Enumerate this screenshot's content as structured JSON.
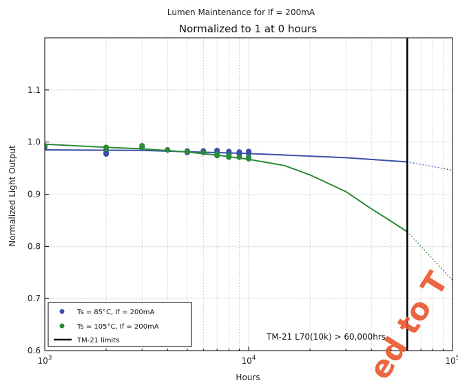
{
  "chart_data": {
    "type": "scatter",
    "title": "Lumen Maintenance for If = 200mA",
    "subtitle": "Normalized to 1 at 0 hours",
    "xlabel": "Hours",
    "ylabel": "Normalized Light Output",
    "xscale": "log",
    "xlim": [
      1000,
      100000
    ],
    "ylim": [
      0.6,
      1.2
    ],
    "x_ticks": [
      {
        "value": 1000,
        "base": "10",
        "exp": "3"
      },
      {
        "value": 10000,
        "base": "10",
        "exp": "4"
      },
      {
        "value": 100000,
        "base": "10",
        "exp": "5"
      }
    ],
    "y_ticks": [
      {
        "value": 0.6,
        "label": "0.6"
      },
      {
        "value": 0.7,
        "label": "0.7"
      },
      {
        "value": 0.8,
        "label": "0.8"
      },
      {
        "value": 0.9,
        "label": "0.9"
      },
      {
        "value": 1.0,
        "label": "1.0"
      },
      {
        "value": 1.1,
        "label": "1.1"
      }
    ],
    "grid": true,
    "legend_position": "lower-left",
    "series": [
      {
        "name": "Ts = 85°C, If = 200mA",
        "color": "#3a4fa8",
        "points": [
          [
            1000,
            0.99
          ],
          [
            2000,
            0.98
          ],
          [
            2000,
            0.977
          ],
          [
            3000,
            0.99
          ],
          [
            4000,
            0.985
          ],
          [
            5000,
            0.983
          ],
          [
            5000,
            0.98
          ],
          [
            6000,
            0.983
          ],
          [
            7000,
            0.984
          ],
          [
            7000,
            0.98
          ],
          [
            8000,
            0.982
          ],
          [
            8000,
            0.978
          ],
          [
            9000,
            0.981
          ],
          [
            9000,
            0.977
          ],
          [
            10000,
            0.982
          ],
          [
            10000,
            0.978
          ]
        ],
        "fit": [
          [
            1000,
            0.985
          ],
          [
            3000,
            0.984
          ],
          [
            10000,
            0.978
          ],
          [
            30000,
            0.97
          ],
          [
            60000,
            0.962
          ]
        ],
        "projection": [
          [
            60000,
            0.962
          ],
          [
            100000,
            0.946
          ]
        ]
      },
      {
        "name": "Ts = 105°C, If = 200mA",
        "color": "#2a8a3a",
        "points": [
          [
            1000,
            0.993
          ],
          [
            2000,
            0.99
          ],
          [
            2000,
            0.987
          ],
          [
            3000,
            0.993
          ],
          [
            3000,
            0.99
          ],
          [
            4000,
            0.985
          ],
          [
            5000,
            0.982
          ],
          [
            6000,
            0.98
          ],
          [
            7000,
            0.977
          ],
          [
            7000,
            0.974
          ],
          [
            8000,
            0.974
          ],
          [
            8000,
            0.971
          ],
          [
            9000,
            0.971
          ],
          [
            10000,
            0.971
          ],
          [
            10000,
            0.968
          ]
        ],
        "fit": [
          [
            1000,
            0.996
          ],
          [
            2000,
            0.99
          ],
          [
            3000,
            0.987
          ],
          [
            5000,
            0.981
          ],
          [
            7000,
            0.975
          ],
          [
            10000,
            0.967
          ],
          [
            15000,
            0.955
          ],
          [
            20000,
            0.937
          ],
          [
            30000,
            0.905
          ],
          [
            40000,
            0.872
          ],
          [
            50000,
            0.848
          ],
          [
            60000,
            0.828
          ]
        ],
        "projection": [
          [
            60000,
            0.828
          ],
          [
            100000,
            0.735
          ]
        ]
      }
    ],
    "tm21_limit": {
      "name": "TM-21 limits",
      "x": 60000,
      "color": "#000000"
    },
    "annotation": "TM-21 L70(10k) > 60,000hrs",
    "watermark": "ed to T"
  }
}
